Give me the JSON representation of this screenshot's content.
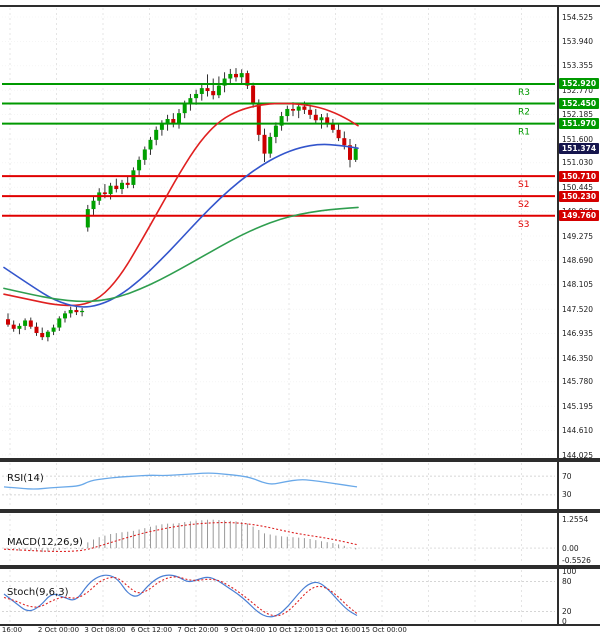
{
  "colors": {
    "background": "#ffffff",
    "panel_border": "#2d2d2d",
    "grid_vertical": "#d9d9d9",
    "grid_horizontal": "#efefef",
    "candle_up": "#00a000",
    "candle_down": "#cc0000",
    "wick": "#1a1a1a",
    "ma_red": "#e02020",
    "ma_blue": "#3355cc",
    "ma_green": "#2f9e4f",
    "resistance": "#009900",
    "support": "#e00000",
    "resistance_badge_bg": "#009900",
    "support_badge_bg": "#d40000",
    "current_badge_bg": "#15154d",
    "rsi_line": "#6aa9e9",
    "macd_hist": "#999999",
    "macd_signal": "#dd2222",
    "stoch_k": "#4a7fd4",
    "stoch_d": "#dd2222",
    "guide_line": "#c8c8c8"
  },
  "chart_data": {
    "type": "candlestick-with-indicators",
    "price_ylim": [
      144.025,
      154.525
    ],
    "price_ticks": [
      "154.525",
      "153.940",
      "153.355",
      "152.770",
      "152.185",
      "151.600",
      "151.030",
      "150.445",
      "149.860",
      "149.275",
      "148.690",
      "148.105",
      "147.520",
      "146.935",
      "146.350",
      "145.780",
      "145.195",
      "144.610",
      "144.025"
    ],
    "time_ticks": [
      "16:00",
      "2 Oct 00:00",
      "3 Oct 08:00",
      "6 Oct 12:00",
      "7 Oct 20:00",
      "9 Oct 04:00",
      "10 Oct 12:00",
      "13 Oct 16:00",
      "15 Oct 00:00"
    ],
    "levels": {
      "resistances": [
        {
          "name": "R3",
          "price": 152.92,
          "label": "152.920"
        },
        {
          "name": "R2",
          "price": 152.45,
          "label": "152.450"
        },
        {
          "name": "R1",
          "price": 151.97,
          "label": "151.970"
        }
      ],
      "supports": [
        {
          "name": "S1",
          "price": 150.71,
          "label": "150.710"
        },
        {
          "name": "S2",
          "price": 150.23,
          "label": "150.230"
        },
        {
          "name": "S3",
          "price": 149.76,
          "label": "149.760"
        }
      ],
      "current_price": {
        "label": "151.374",
        "price": 151.374
      }
    },
    "candles": [
      [
        147.28,
        147.42,
        147.1,
        147.15
      ],
      [
        147.15,
        147.25,
        146.98,
        147.05
      ],
      [
        147.05,
        147.18,
        146.92,
        147.12
      ],
      [
        147.12,
        147.3,
        147.02,
        147.25
      ],
      [
        147.25,
        147.32,
        147.05,
        147.1
      ],
      [
        147.1,
        147.2,
        146.88,
        146.95
      ],
      [
        146.95,
        147.08,
        146.78,
        146.85
      ],
      [
        146.85,
        147.02,
        146.75,
        146.98
      ],
      [
        146.98,
        147.15,
        146.9,
        147.08
      ],
      [
        147.08,
        147.35,
        147.0,
        147.3
      ],
      [
        147.3,
        147.48,
        147.2,
        147.42
      ],
      [
        147.42,
        147.58,
        147.32,
        147.5
      ],
      [
        147.5,
        147.62,
        147.38,
        147.45
      ],
      [
        147.45,
        147.55,
        147.35,
        147.48
      ],
      [
        149.48,
        150.02,
        149.38,
        149.92
      ],
      [
        149.92,
        150.22,
        149.78,
        150.12
      ],
      [
        150.12,
        150.42,
        150.02,
        150.32
      ],
      [
        150.32,
        150.52,
        150.18,
        150.28
      ],
      [
        150.28,
        150.55,
        150.15,
        150.48
      ],
      [
        150.48,
        150.65,
        150.32,
        150.4
      ],
      [
        150.4,
        150.62,
        150.28,
        150.55
      ],
      [
        150.55,
        150.72,
        150.42,
        150.5
      ],
      [
        150.5,
        150.92,
        150.42,
        150.85
      ],
      [
        150.85,
        151.18,
        150.72,
        151.1
      ],
      [
        151.1,
        151.42,
        150.98,
        151.35
      ],
      [
        151.35,
        151.65,
        151.22,
        151.58
      ],
      [
        151.58,
        151.9,
        151.45,
        151.82
      ],
      [
        151.82,
        152.05,
        151.68,
        151.95
      ],
      [
        151.95,
        152.18,
        151.8,
        152.08
      ],
      [
        152.08,
        152.22,
        151.88,
        151.95
      ],
      [
        151.95,
        152.32,
        151.85,
        152.22
      ],
      [
        152.22,
        152.52,
        152.1,
        152.45
      ],
      [
        152.45,
        152.68,
        152.28,
        152.58
      ],
      [
        152.58,
        152.78,
        152.42,
        152.68
      ],
      [
        152.68,
        152.92,
        152.52,
        152.82
      ],
      [
        152.82,
        153.15,
        152.62,
        152.75
      ],
      [
        152.75,
        153.05,
        152.55,
        152.65
      ],
      [
        152.65,
        153.1,
        152.58,
        152.88
      ],
      [
        152.88,
        153.2,
        152.72,
        153.05
      ],
      [
        153.05,
        153.28,
        152.9,
        153.16
      ],
      [
        153.16,
        153.3,
        152.98,
        153.08
      ],
      [
        153.08,
        153.27,
        152.92,
        153.18
      ],
      [
        153.18,
        153.24,
        152.8,
        152.88
      ],
      [
        152.88,
        152.95,
        152.35,
        152.45
      ],
      [
        152.45,
        152.55,
        151.55,
        151.7
      ],
      [
        151.7,
        151.85,
        151.05,
        151.25
      ],
      [
        151.25,
        151.75,
        151.15,
        151.65
      ],
      [
        151.65,
        152.0,
        151.5,
        151.92
      ],
      [
        151.92,
        152.25,
        151.8,
        152.15
      ],
      [
        152.15,
        152.4,
        152.02,
        152.32
      ],
      [
        152.32,
        152.48,
        152.15,
        152.28
      ],
      [
        152.28,
        152.45,
        152.1,
        152.38
      ],
      [
        152.38,
        152.5,
        152.2,
        152.3
      ],
      [
        152.3,
        152.42,
        152.08,
        152.18
      ],
      [
        152.18,
        152.32,
        151.95,
        152.05
      ],
      [
        152.05,
        152.2,
        151.85,
        152.12
      ],
      [
        152.12,
        152.22,
        151.88,
        151.95
      ],
      [
        151.95,
        152.08,
        151.75,
        151.82
      ],
      [
        151.82,
        151.95,
        151.55,
        151.62
      ],
      [
        151.62,
        151.78,
        151.35,
        151.45
      ],
      [
        151.45,
        151.6,
        150.92,
        151.1
      ],
      [
        151.1,
        151.48,
        151.05,
        151.37
      ]
    ],
    "moving_averages": [
      {
        "name": "ma-red",
        "color_key": "ma_red",
        "points": [
          [
            4,
            147.88
          ],
          [
            30,
            147.75
          ],
          [
            55,
            147.62
          ],
          [
            80,
            147.6
          ],
          [
            100,
            147.78
          ],
          [
            120,
            148.3
          ],
          [
            140,
            149.1
          ],
          [
            160,
            149.95
          ],
          [
            180,
            150.8
          ],
          [
            200,
            151.55
          ],
          [
            220,
            152.05
          ],
          [
            240,
            152.3
          ],
          [
            260,
            152.42
          ],
          [
            280,
            152.46
          ],
          [
            300,
            152.44
          ],
          [
            320,
            152.36
          ],
          [
            340,
            152.18
          ],
          [
            358,
            151.92
          ]
        ]
      },
      {
        "name": "ma-blue",
        "color_key": "ma_blue",
        "points": [
          [
            4,
            148.52
          ],
          [
            30,
            148.1
          ],
          [
            55,
            147.72
          ],
          [
            80,
            147.55
          ],
          [
            100,
            147.62
          ],
          [
            120,
            147.85
          ],
          [
            140,
            148.22
          ],
          [
            160,
            148.68
          ],
          [
            180,
            149.18
          ],
          [
            200,
            149.7
          ],
          [
            220,
            150.18
          ],
          [
            240,
            150.6
          ],
          [
            260,
            150.95
          ],
          [
            280,
            151.22
          ],
          [
            300,
            151.4
          ],
          [
            320,
            151.48
          ],
          [
            340,
            151.45
          ],
          [
            358,
            151.38
          ]
        ]
      },
      {
        "name": "ma-green",
        "color_key": "ma_green",
        "points": [
          [
            4,
            148.02
          ],
          [
            30,
            147.88
          ],
          [
            55,
            147.76
          ],
          [
            80,
            147.7
          ],
          [
            100,
            147.72
          ],
          [
            120,
            147.82
          ],
          [
            140,
            148.0
          ],
          [
            160,
            148.22
          ],
          [
            180,
            148.48
          ],
          [
            200,
            148.75
          ],
          [
            220,
            149.02
          ],
          [
            240,
            149.28
          ],
          [
            260,
            149.5
          ],
          [
            280,
            149.68
          ],
          [
            300,
            149.8
          ],
          [
            320,
            149.88
          ],
          [
            340,
            149.93
          ],
          [
            358,
            149.96
          ]
        ]
      }
    ],
    "indicators": {
      "rsi": {
        "label": "RSI(14)",
        "range": [
          0,
          100
        ],
        "guides": [
          70,
          30
        ],
        "axis_labels": [
          {
            "text": "70",
            "value": 70
          },
          {
            "text": "30",
            "value": 30
          }
        ],
        "points": [
          [
            4,
            47
          ],
          [
            20,
            44
          ],
          [
            35,
            42
          ],
          [
            50,
            45
          ],
          [
            65,
            47
          ],
          [
            80,
            49
          ],
          [
            90,
            60
          ],
          [
            105,
            65
          ],
          [
            120,
            68
          ],
          [
            135,
            70
          ],
          [
            150,
            72
          ],
          [
            165,
            71
          ],
          [
            180,
            73
          ],
          [
            195,
            75
          ],
          [
            210,
            77
          ],
          [
            225,
            74
          ],
          [
            240,
            71
          ],
          [
            252,
            66
          ],
          [
            262,
            57
          ],
          [
            272,
            52
          ],
          [
            285,
            58
          ],
          [
            300,
            63
          ],
          [
            312,
            61
          ],
          [
            325,
            57
          ],
          [
            338,
            53
          ],
          [
            348,
            50
          ],
          [
            357,
            47
          ]
        ]
      },
      "macd": {
        "label": "MACD(12,26,9)",
        "axis_labels": [
          {
            "text": "1.2554",
            "value": 1.2554
          },
          {
            "text": "0.00",
            "value": 0
          },
          {
            "text": "-0.5526",
            "value": -0.5526
          }
        ],
        "zero": 0,
        "histogram": [
          -0.08,
          -0.1,
          -0.12,
          -0.1,
          -0.12,
          -0.15,
          -0.18,
          -0.16,
          -0.12,
          -0.08,
          -0.05,
          -0.03,
          -0.04,
          -0.05,
          0.25,
          0.38,
          0.48,
          0.55,
          0.62,
          0.66,
          0.7,
          0.72,
          0.76,
          0.82,
          0.88,
          0.94,
          1.0,
          1.05,
          1.08,
          1.08,
          1.1,
          1.15,
          1.18,
          1.21,
          1.23,
          1.25,
          1.255,
          1.24,
          1.22,
          1.2,
          1.18,
          1.15,
          1.08,
          0.95,
          0.8,
          0.65,
          0.6,
          0.55,
          0.52,
          0.5,
          0.48,
          0.46,
          0.44,
          0.4,
          0.35,
          0.3,
          0.26,
          0.22,
          0.16,
          0.1,
          0.02,
          -0.06
        ],
        "signal_points": [
          [
            4,
            -0.05
          ],
          [
            25,
            -0.1
          ],
          [
            45,
            -0.14
          ],
          [
            65,
            -0.16
          ],
          [
            85,
            -0.1
          ],
          [
            100,
            0.1
          ],
          [
            115,
            0.3
          ],
          [
            130,
            0.5
          ],
          [
            145,
            0.68
          ],
          [
            160,
            0.82
          ],
          [
            175,
            0.95
          ],
          [
            190,
            1.04
          ],
          [
            205,
            1.1
          ],
          [
            220,
            1.13
          ],
          [
            235,
            1.12
          ],
          [
            250,
            1.06
          ],
          [
            265,
            0.95
          ],
          [
            280,
            0.8
          ],
          [
            295,
            0.66
          ],
          [
            310,
            0.55
          ],
          [
            325,
            0.45
          ],
          [
            340,
            0.32
          ],
          [
            357,
            0.15
          ]
        ]
      },
      "stoch": {
        "label": "Stoch(9,6,3)",
        "range": [
          0,
          100
        ],
        "guides": [
          80,
          20
        ],
        "axis_labels": [
          {
            "text": "100",
            "value": 100
          },
          {
            "text": "80",
            "value": 80
          },
          {
            "text": "20",
            "value": 20
          },
          {
            "text": "0",
            "value": 0
          }
        ],
        "k_points": [
          [
            4,
            55
          ],
          [
            15,
            38
          ],
          [
            28,
            18
          ],
          [
            40,
            30
          ],
          [
            52,
            58
          ],
          [
            64,
            48
          ],
          [
            76,
            40
          ],
          [
            88,
            75
          ],
          [
            98,
            90
          ],
          [
            108,
            94
          ],
          [
            118,
            85
          ],
          [
            128,
            55
          ],
          [
            138,
            48
          ],
          [
            148,
            72
          ],
          [
            158,
            88
          ],
          [
            168,
            94
          ],
          [
            178,
            90
          ],
          [
            188,
            78
          ],
          [
            198,
            84
          ],
          [
            208,
            90
          ],
          [
            218,
            82
          ],
          [
            228,
            68
          ],
          [
            238,
            55
          ],
          [
            248,
            38
          ],
          [
            258,
            18
          ],
          [
            268,
            8
          ],
          [
            278,
            12
          ],
          [
            288,
            30
          ],
          [
            298,
            55
          ],
          [
            308,
            75
          ],
          [
            318,
            80
          ],
          [
            328,
            65
          ],
          [
            338,
            42
          ],
          [
            348,
            22
          ],
          [
            357,
            12
          ]
        ],
        "d_points": [
          [
            4,
            48
          ],
          [
            15,
            42
          ],
          [
            28,
            30
          ],
          [
            40,
            28
          ],
          [
            52,
            42
          ],
          [
            64,
            50
          ],
          [
            76,
            45
          ],
          [
            88,
            58
          ],
          [
            98,
            78
          ],
          [
            108,
            88
          ],
          [
            118,
            88
          ],
          [
            128,
            70
          ],
          [
            138,
            55
          ],
          [
            148,
            62
          ],
          [
            158,
            78
          ],
          [
            168,
            88
          ],
          [
            178,
            90
          ],
          [
            188,
            83
          ],
          [
            198,
            82
          ],
          [
            208,
            85
          ],
          [
            218,
            83
          ],
          [
            228,
            73
          ],
          [
            238,
            60
          ],
          [
            248,
            45
          ],
          [
            258,
            28
          ],
          [
            268,
            14
          ],
          [
            278,
            10
          ],
          [
            288,
            20
          ],
          [
            298,
            40
          ],
          [
            308,
            62
          ],
          [
            318,
            72
          ],
          [
            328,
            66
          ],
          [
            338,
            50
          ],
          [
            348,
            30
          ],
          [
            357,
            16
          ]
        ]
      }
    }
  }
}
